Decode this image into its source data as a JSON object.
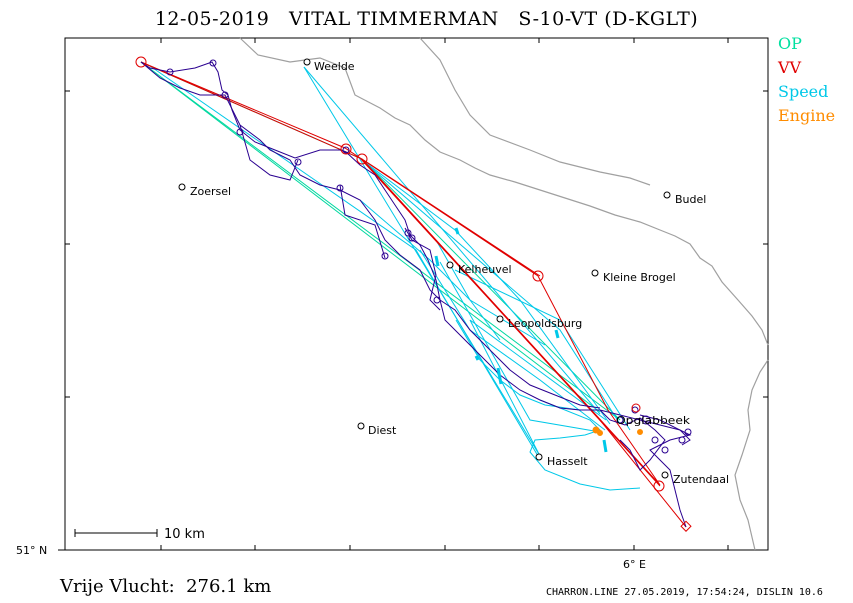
{
  "title": "12-05-2019   VITAL TIMMERMAN   S-10-VT (D-KGLT)",
  "legend": [
    {
      "label": "OP",
      "color": "#00e0a0"
    },
    {
      "label": "VV",
      "color": "#e00000"
    },
    {
      "label": "Speed",
      "color": "#00c8e8"
    },
    {
      "label": "Engine",
      "color": "#ff8c00"
    }
  ],
  "places": [
    {
      "name": "Weelde"
    },
    {
      "name": "Zoersel"
    },
    {
      "name": "Budel"
    },
    {
      "name": "Kelheuvel"
    },
    {
      "name": "Kleine Brogel"
    },
    {
      "name": "Leopoldsburg"
    },
    {
      "name": "Diest"
    },
    {
      "name": "Hasselt"
    },
    {
      "name": "Zutendaal"
    },
    {
      "name": "Opglabbeek"
    }
  ],
  "axes": {
    "lat_label": "51° N",
    "lon_label": "6° E"
  },
  "scale_label": "10 km",
  "distance_text": "Vrije Vlucht:  276.1 km",
  "footer_text": "CHARRON.LINE 27.05.2019, 17:54:24, DISLIN 10.6",
  "colors": {
    "track": "#2a0090",
    "border": "#a0a0a0",
    "frame": "#000000"
  }
}
